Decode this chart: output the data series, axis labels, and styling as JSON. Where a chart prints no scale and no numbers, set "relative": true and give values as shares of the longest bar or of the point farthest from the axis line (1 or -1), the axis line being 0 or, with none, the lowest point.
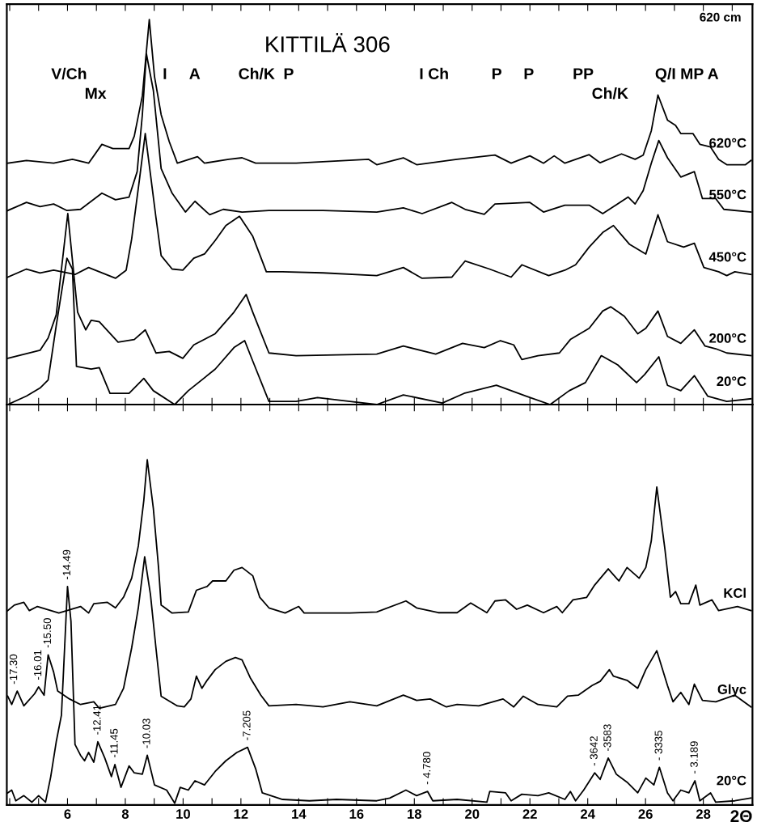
{
  "chart_data": [
    {
      "type": "line",
      "title": "KITTILÄ 306",
      "subtitle": "620 cm",
      "relative": true,
      "tick_labels": false,
      "grid": false,
      "legend": false,
      "marker": "none",
      "line_style": "solid",
      "xlim": [
        3.9,
        29.7
      ],
      "xticks": [
        {
          "value": 4,
          "label": null
        },
        {
          "value": 5,
          "label": null
        },
        6,
        {
          "value": 7,
          "label": null
        },
        8,
        {
          "value": 9,
          "label": null
        },
        10,
        {
          "value": 11,
          "label": null
        },
        12,
        {
          "value": 13,
          "label": null
        },
        14,
        {
          "value": 15,
          "label": null
        },
        16,
        {
          "value": 17,
          "label": null
        },
        18,
        {
          "value": 19,
          "label": null
        },
        20,
        {
          "value": 21,
          "label": null
        },
        22,
        {
          "value": 23,
          "label": null
        },
        24,
        {
          "value": 25,
          "label": null
        },
        26,
        {
          "value": 27,
          "label": null
        },
        28,
        {
          "value": 29,
          "label": null
        }
      ],
      "annotations": [
        "V/Ch",
        "Mx",
        "I",
        "A",
        "Ch/K",
        "P",
        "I Ch",
        "P",
        "P",
        "PP",
        "Ch/K",
        "Q/I MP A"
      ],
      "series": [
        {
          "name": "620°C",
          "color": "#000000",
          "x": [
            3.93,
            4.58,
            5.52,
            6.17,
            6.73,
            7.19,
            7.57,
            8.13,
            8.31,
            8.59,
            8.83,
            9.01,
            9.24,
            9.52,
            9.8,
            10.5,
            10.74,
            11.58,
            12.04,
            12.51,
            13.91,
            16.42,
            16.7,
            17.62,
            18.08,
            19.48,
            20.79,
            21.35,
            22.0,
            22.47,
            22.84,
            23.21,
            24.05,
            24.43,
            25.17,
            25.64,
            25.92,
            26.2,
            26.43,
            26.76,
            27.04,
            27.22,
            27.64,
            27.88,
            28.25,
            28.53,
            28.81,
            29.46,
            29.65
          ],
          "values": [
            0.627,
            0.634,
            0.627,
            0.637,
            0.627,
            0.676,
            0.665,
            0.665,
            0.697,
            0.802,
            1.0,
            0.852,
            0.753,
            0.683,
            0.627,
            0.644,
            0.627,
            0.637,
            0.641,
            0.627,
            0.627,
            0.637,
            0.623,
            0.641,
            0.623,
            0.637,
            0.648,
            0.627,
            0.646,
            0.627,
            0.646,
            0.627,
            0.649,
            0.628,
            0.651,
            0.637,
            0.648,
            0.711,
            0.804,
            0.739,
            0.725,
            0.704,
            0.704,
            0.676,
            0.669,
            0.637,
            0.623,
            0.623,
            0.634
          ]
        },
        {
          "name": "550°C",
          "color": "#000000",
          "x": [
            3.93,
            4.58,
            5.05,
            5.52,
            5.98,
            6.45,
            7.19,
            7.66,
            8.13,
            8.41,
            8.59,
            8.73,
            8.97,
            9.24,
            9.62,
            10.08,
            10.41,
            10.92,
            11.39,
            12.04,
            12.97,
            14.84,
            16.7,
            17.62,
            18.27,
            19.3,
            19.76,
            20.42,
            20.79,
            22.0,
            22.47,
            23.21,
            24.05,
            24.52,
            25.4,
            25.64,
            25.92,
            26.2,
            26.46,
            26.76,
            27.22,
            27.69,
            27.97,
            28.43,
            28.71,
            29.65
          ],
          "values": [
            0.504,
            0.525,
            0.514,
            0.521,
            0.504,
            0.507,
            0.549,
            0.532,
            0.539,
            0.605,
            0.753,
            0.911,
            0.816,
            0.613,
            0.549,
            0.5,
            0.528,
            0.493,
            0.507,
            0.5,
            0.504,
            0.504,
            0.5,
            0.511,
            0.496,
            0.525,
            0.507,
            0.494,
            0.521,
            0.525,
            0.5,
            0.518,
            0.518,
            0.496,
            0.539,
            0.521,
            0.556,
            0.627,
            0.686,
            0.641,
            0.591,
            0.605,
            0.535,
            0.535,
            0.507,
            0.5
          ]
        },
        {
          "name": "450°C",
          "color": "#000000",
          "x": [
            3.93,
            4.58,
            5.05,
            5.52,
            6.26,
            6.73,
            7.66,
            8.03,
            8.22,
            8.5,
            8.69,
            8.87,
            9.06,
            9.24,
            9.62,
            9.99,
            10.37,
            10.74,
            11.11,
            11.48,
            11.95,
            12.41,
            12.88,
            13.44,
            14.84,
            16.7,
            17.62,
            18.27,
            19.3,
            19.76,
            20.6,
            21.35,
            21.72,
            22.65,
            23.21,
            23.58,
            24.05,
            24.52,
            24.89,
            25.45,
            26.01,
            26.43,
            26.76,
            27.32,
            27.69,
            28.02,
            28.53,
            28.81,
            29.09,
            29.65
          ],
          "values": [
            0.331,
            0.352,
            0.342,
            0.349,
            0.338,
            0.356,
            0.328,
            0.349,
            0.43,
            0.591,
            0.704,
            0.598,
            0.486,
            0.387,
            0.352,
            0.349,
            0.38,
            0.391,
            0.426,
            0.465,
            0.489,
            0.437,
            0.345,
            0.345,
            0.342,
            0.335,
            0.356,
            0.328,
            0.331,
            0.373,
            0.352,
            0.331,
            0.363,
            0.335,
            0.349,
            0.363,
            0.409,
            0.447,
            0.465,
            0.416,
            0.391,
            0.493,
            0.423,
            0.409,
            0.419,
            0.356,
            0.345,
            0.335,
            0.345,
            0.338
          ]
        },
        {
          "name": "200°C",
          "color": "#000000",
          "x": [
            3.93,
            5.05,
            5.33,
            5.61,
            6.01,
            6.21,
            6.35,
            6.63,
            6.82,
            7.1,
            7.75,
            8.31,
            8.69,
            9.06,
            9.52,
            9.99,
            10.37,
            11.11,
            11.76,
            12.18,
            12.41,
            12.97,
            13.91,
            16.7,
            17.62,
            18.74,
            19.67,
            20.42,
            20.98,
            21.44,
            21.72,
            22.28,
            23.02,
            23.4,
            24.05,
            24.52,
            24.8,
            25.27,
            25.73,
            26.01,
            26.43,
            26.76,
            27.22,
            27.69,
            28.06,
            28.43,
            28.81,
            29.65
          ],
          "values": [
            0.12,
            0.141,
            0.173,
            0.233,
            0.496,
            0.345,
            0.24,
            0.194,
            0.219,
            0.215,
            0.162,
            0.169,
            0.194,
            0.134,
            0.138,
            0.12,
            0.155,
            0.184,
            0.24,
            0.286,
            0.24,
            0.134,
            0.127,
            0.131,
            0.152,
            0.131,
            0.159,
            0.148,
            0.166,
            0.155,
            0.117,
            0.127,
            0.134,
            0.169,
            0.198,
            0.243,
            0.254,
            0.229,
            0.184,
            0.198,
            0.243,
            0.177,
            0.159,
            0.194,
            0.152,
            0.145,
            0.134,
            0.127
          ]
        },
        {
          "name": "20°C",
          "color": "#000000",
          "x": [
            3.93,
            4.58,
            5.05,
            5.33,
            5.61,
            5.98,
            6.17,
            6.31,
            6.82,
            7.1,
            7.47,
            8.13,
            8.64,
            8.97,
            9.71,
            10.18,
            11.11,
            11.76,
            12.13,
            12.41,
            12.97,
            13.91,
            14.65,
            15.77,
            16.7,
            17.62,
            18.97,
            19.72,
            20.84,
            21.87,
            22.7,
            23.36,
            23.92,
            24.47,
            25.04,
            25.69,
            25.97,
            26.46,
            26.76,
            27.22,
            27.69,
            28.15,
            28.81,
            29.65
          ],
          "values": [
            0.0,
            0.022,
            0.043,
            0.064,
            0.205,
            0.38,
            0.352,
            0.099,
            0.092,
            0.096,
            0.029,
            0.029,
            0.068,
            0.036,
            0.0,
            0.036,
            0.092,
            0.148,
            0.166,
            0.113,
            0.008,
            0.008,
            0.018,
            0.008,
            0.0,
            0.025,
            0.004,
            0.029,
            0.05,
            0.022,
            0.0,
            0.036,
            0.057,
            0.127,
            0.103,
            0.057,
            0.078,
            0.124,
            0.05,
            0.036,
            0.075,
            0.022,
            0.008,
            0.015
          ]
        }
      ]
    },
    {
      "type": "line",
      "xlabel": "2Θ",
      "relative": true,
      "tick_labels": "x",
      "grid": false,
      "legend": false,
      "marker": "none",
      "line_style": "solid",
      "xlim": [
        3.9,
        29.7
      ],
      "xticks": [
        {
          "value": 4,
          "label": null
        },
        {
          "value": 5,
          "label": null
        },
        6,
        {
          "value": 7,
          "label": null
        },
        8,
        {
          "value": 9,
          "label": null
        },
        10,
        {
          "value": 11,
          "label": null
        },
        12,
        {
          "value": 13,
          "label": null
        },
        14,
        {
          "value": 15,
          "label": null
        },
        16,
        {
          "value": 17,
          "label": null
        },
        18,
        {
          "value": 19,
          "label": null
        },
        20,
        {
          "value": 21,
          "label": null
        },
        22,
        {
          "value": 23,
          "label": null
        },
        24,
        {
          "value": 25,
          "label": null
        },
        26,
        {
          "value": 27,
          "label": null
        },
        28,
        {
          "value": 29,
          "label": null
        }
      ],
      "annotations": [
        {
          "text": "-17.30",
          "x": 4.16,
          "y": 0.33
        },
        {
          "text": "-16.01",
          "x": 5.0,
          "y": 0.342
        },
        {
          "text": "-15.50",
          "x": 5.33,
          "y": 0.435
        },
        {
          "text": "-14.49",
          "x": 6.0,
          "y": 0.633
        },
        {
          "text": "-12.41",
          "x": 7.05,
          "y": 0.183
        },
        {
          "text": "-11.45",
          "x": 7.64,
          "y": 0.117
        },
        {
          "text": "-10.03",
          "x": 8.76,
          "y": 0.144
        },
        {
          "text": "-7.205",
          "x": 12.23,
          "y": 0.167
        },
        {
          "text": "- 4.780",
          "x": 18.46,
          "y": 0.039
        },
        {
          "text": "- 3642",
          "x": 24.24,
          "y": 0.093
        },
        {
          "text": "-3583",
          "x": 24.71,
          "y": 0.136
        },
        {
          "text": "- 3335",
          "x": 26.48,
          "y": 0.109
        },
        {
          "text": "- 3.189",
          "x": 27.71,
          "y": 0.07
        }
      ],
      "series": [
        {
          "name": "KCl",
          "color": "#000000",
          "x": [
            3.93,
            4.16,
            4.49,
            4.68,
            4.96,
            5.7,
            6.45,
            6.73,
            6.91,
            7.38,
            7.66,
            7.94,
            8.22,
            8.45,
            8.64,
            8.76,
            8.97,
            9.15,
            9.24,
            9.62,
            10.18,
            10.46,
            10.83,
            11.02,
            11.48,
            11.76,
            12.04,
            12.41,
            12.65,
            12.97,
            13.53,
            14.0,
            14.19,
            15.77,
            16.7,
            17.71,
            18.08,
            18.83,
            19.48,
            19.95,
            20.51,
            20.79,
            21.16,
            21.54,
            21.91,
            22.47,
            22.93,
            23.12,
            23.49,
            23.96,
            24.24,
            24.71,
            25.08,
            25.36,
            25.78,
            26.01,
            26.2,
            26.39,
            26.67,
            26.86,
            27.04,
            27.22,
            27.5,
            27.74,
            27.88,
            28.3,
            28.53,
            29.18,
            29.65
          ],
          "values": [
            0.563,
            0.579,
            0.587,
            0.563,
            0.575,
            0.556,
            0.575,
            0.556,
            0.583,
            0.587,
            0.571,
            0.602,
            0.657,
            0.75,
            0.882,
            1.0,
            0.859,
            0.688,
            0.579,
            0.556,
            0.559,
            0.622,
            0.633,
            0.649,
            0.649,
            0.68,
            0.688,
            0.664,
            0.602,
            0.571,
            0.556,
            0.575,
            0.556,
            0.556,
            0.559,
            0.591,
            0.571,
            0.557,
            0.557,
            0.585,
            0.557,
            0.591,
            0.594,
            0.567,
            0.579,
            0.557,
            0.575,
            0.557,
            0.594,
            0.601,
            0.637,
            0.684,
            0.649,
            0.688,
            0.657,
            0.688,
            0.765,
            0.921,
            0.742,
            0.602,
            0.618,
            0.583,
            0.583,
            0.637,
            0.579,
            0.594,
            0.563,
            0.575,
            0.563
          ]
        },
        {
          "name": "Glyc",
          "color": "#000000",
          "x": [
            3.93,
            4.07,
            4.26,
            4.49,
            4.86,
            5.0,
            5.19,
            5.33,
            5.52,
            5.66,
            6.07,
            6.45,
            6.91,
            7.1,
            7.66,
            7.94,
            8.22,
            8.45,
            8.67,
            8.87,
            9.06,
            9.24,
            9.8,
            10.04,
            10.27,
            10.46,
            10.65,
            10.83,
            11.11,
            11.48,
            11.81,
            12.04,
            12.32,
            12.69,
            12.97,
            13.91,
            14.84,
            15.77,
            16.7,
            17.62,
            18.08,
            18.55,
            19.11,
            19.48,
            20.23,
            21.07,
            21.44,
            21.77,
            22.28,
            22.93,
            23.3,
            23.67,
            24.15,
            24.43,
            24.75,
            24.89,
            25.36,
            25.73,
            26.01,
            26.39,
            26.76,
            26.95,
            27.22,
            27.5,
            27.69,
            27.97,
            28.43,
            29.09,
            29.65
          ],
          "values": [
            0.315,
            0.291,
            0.33,
            0.287,
            0.322,
            0.342,
            0.318,
            0.435,
            0.385,
            0.33,
            0.307,
            0.291,
            0.299,
            0.28,
            0.291,
            0.338,
            0.455,
            0.571,
            0.719,
            0.61,
            0.455,
            0.315,
            0.287,
            0.284,
            0.307,
            0.373,
            0.338,
            0.361,
            0.392,
            0.416,
            0.427,
            0.42,
            0.369,
            0.318,
            0.287,
            0.291,
            0.284,
            0.299,
            0.287,
            0.318,
            0.303,
            0.307,
            0.284,
            0.291,
            0.287,
            0.307,
            0.284,
            0.315,
            0.291,
            0.284,
            0.315,
            0.318,
            0.346,
            0.358,
            0.392,
            0.373,
            0.361,
            0.338,
            0.392,
            0.447,
            0.346,
            0.299,
            0.326,
            0.291,
            0.35,
            0.303,
            0.299,
            0.318,
            0.284
          ]
        },
        {
          "name": "20°C",
          "color": "#000000",
          "x": [
            3.93,
            4.07,
            4.21,
            4.49,
            4.77,
            5.0,
            5.24,
            5.42,
            5.61,
            5.79,
            6.0,
            6.12,
            6.26,
            6.45,
            6.59,
            6.73,
            6.91,
            7.05,
            7.29,
            7.52,
            7.64,
            7.85,
            8.13,
            8.31,
            8.59,
            8.76,
            9.01,
            9.43,
            9.71,
            9.9,
            10.18,
            10.41,
            10.74,
            11.11,
            11.48,
            11.86,
            12.23,
            12.51,
            12.74,
            13.44,
            14.37,
            15.31,
            16.7,
            17.15,
            17.71,
            18.08,
            18.46,
            18.64,
            19.48,
            20.51,
            20.61,
            21.16,
            21.35,
            21.72,
            22.28,
            22.65,
            23.21,
            23.4,
            23.58,
            23.86,
            24.24,
            24.43,
            24.71,
            24.99,
            25.36,
            25.73,
            26.01,
            26.29,
            26.48,
            26.76,
            26.95,
            27.22,
            27.5,
            27.71,
            27.88,
            28.25,
            28.43,
            29.09,
            29.65
          ],
          "values": [
            0.035,
            0.043,
            0.012,
            0.027,
            0.008,
            0.027,
            0.008,
            0.082,
            0.183,
            0.26,
            0.633,
            0.532,
            0.175,
            0.144,
            0.128,
            0.152,
            0.124,
            0.183,
            0.136,
            0.082,
            0.117,
            0.051,
            0.113,
            0.093,
            0.089,
            0.144,
            0.058,
            0.043,
            0.005,
            0.051,
            0.043,
            0.07,
            0.058,
            0.097,
            0.128,
            0.152,
            0.167,
            0.105,
            0.035,
            0.016,
            0.012,
            0.016,
            0.012,
            0.02,
            0.043,
            0.027,
            0.039,
            0.012,
            0.016,
            0.008,
            0.039,
            0.035,
            0.012,
            0.031,
            0.027,
            0.035,
            0.016,
            0.039,
            0.012,
            0.043,
            0.093,
            0.074,
            0.136,
            0.089,
            0.066,
            0.035,
            0.078,
            0.058,
            0.109,
            0.035,
            0.012,
            0.043,
            0.035,
            0.07,
            0.012,
            0.035,
            0.008,
            0.012,
            0.02
          ]
        }
      ]
    }
  ]
}
